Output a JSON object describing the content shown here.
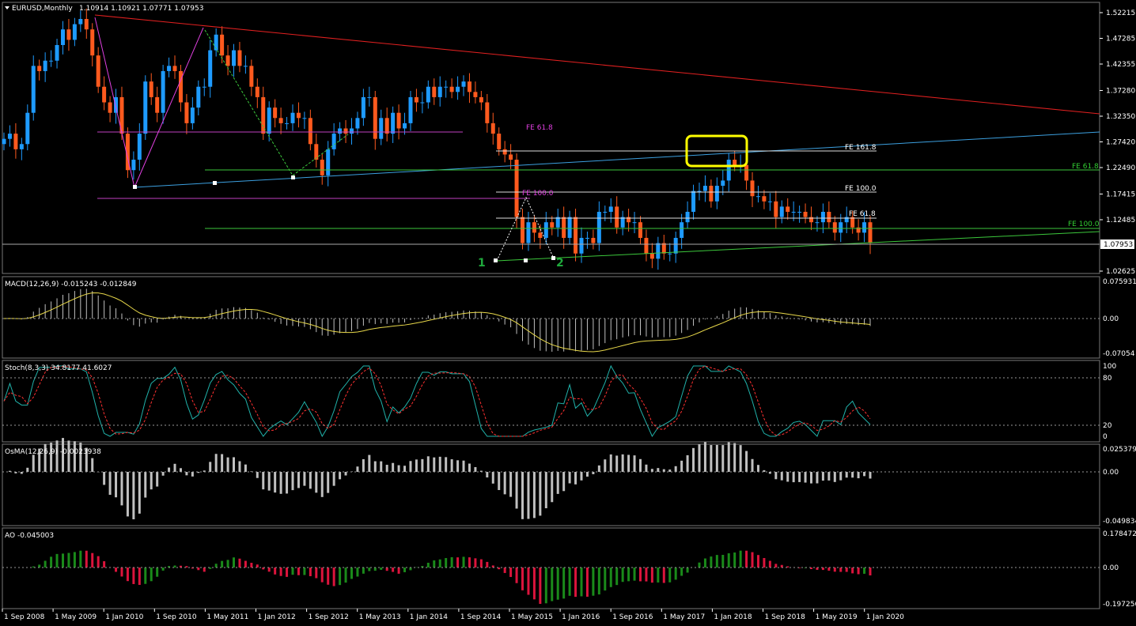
{
  "header": {
    "symbol": "EURUSD,Monthly",
    "ohlc": "1.10914 1.10921 1.07771 1.07953"
  },
  "panes": {
    "macd": {
      "title": "MACD(12,26,9) -0.015243 -0.012849",
      "ticks": [
        "0.075931",
        "0.00",
        "-0.07054"
      ]
    },
    "stoch": {
      "title": "Stoch(8,3,3) 34.8177 41.6027",
      "ticks": [
        "100",
        "80",
        "20",
        "0"
      ]
    },
    "osma": {
      "title": "OsMA(12,26,9) -0.0023938",
      "ticks": [
        "0.0253792",
        "0.00",
        "-0.049834"
      ]
    },
    "ao": {
      "title": "AO -0.045003",
      "ticks": [
        "0.178472",
        "0.00",
        "-0.197256"
      ]
    }
  },
  "annotations": {
    "fib_labels": [
      {
        "text": "FE 61.8",
        "color": "#e040e0"
      },
      {
        "text": "FE 100.0",
        "color": "#e040e0"
      },
      {
        "text": "FE 161.8",
        "color": "#ffffff"
      },
      {
        "text": "FE 100.0",
        "color": "#ffffff"
      },
      {
        "text": "FE 61.8",
        "color": "#ffffff"
      },
      {
        "text": "FE 61.8",
        "color": "#32cd32"
      },
      {
        "text": "FE 100.0",
        "color": "#32cd32"
      }
    ],
    "wave_labels": [
      "1",
      "2"
    ]
  },
  "colors": {
    "bull": "#1e9bff",
    "bear": "#ff5a1e",
    "macd_hist": "#c0c0c0",
    "signal": "#e8d84a",
    "stoch_main": "#20b2aa",
    "stoch_signal": "#ff3030",
    "ao_up": "#1a8a1a",
    "ao_down": "#dc143c",
    "trend_red": "#e02020",
    "trend_blue": "#3ca0e0",
    "trend_green": "#3cc83c",
    "highlight": "#ffff00"
  },
  "chart_data": {
    "type": "candlestick",
    "symbol": "EURUSD",
    "timeframe": "Monthly",
    "price_axis": {
      "ticks": [
        "1.52215",
        "1.47285",
        "1.42355",
        "1.37280",
        "1.32350",
        "1.27420",
        "1.22490",
        "1.17415",
        "1.12485",
        "1.02625"
      ],
      "current_price": "1.07953"
    },
    "time_axis": [
      "1 Sep 2008",
      "1 May 2009",
      "1 Jan 2010",
      "1 Sep 2010",
      "1 May 2011",
      "1 Jan 2012",
      "1 Sep 2012",
      "1 May 2013",
      "1 Jan 2014",
      "1 Sep 2014",
      "1 May 2015",
      "1 Jan 2016",
      "1 Sep 2016",
      "1 May 2017",
      "1 Jan 2018",
      "1 Sep 2018",
      "1 May 2019",
      "1 Jan 2020"
    ],
    "close_series": [
      1.28,
      1.29,
      1.26,
      1.27,
      1.33,
      1.42,
      1.41,
      1.43,
      1.43,
      1.46,
      1.49,
      1.47,
      1.5,
      1.51,
      1.49,
      1.44,
      1.38,
      1.35,
      1.33,
      1.36,
      1.29,
      1.22,
      1.24,
      1.29,
      1.39,
      1.36,
      1.33,
      1.41,
      1.42,
      1.41,
      1.35,
      1.31,
      1.34,
      1.38,
      1.38,
      1.45,
      1.48,
      1.44,
      1.42,
      1.45,
      1.42,
      1.42,
      1.38,
      1.36,
      1.29,
      1.34,
      1.32,
      1.31,
      1.31,
      1.33,
      1.32,
      1.32,
      1.27,
      1.24,
      1.21,
      1.26,
      1.29,
      1.3,
      1.29,
      1.3,
      1.32,
      1.36,
      1.36,
      1.28,
      1.32,
      1.29,
      1.33,
      1.3,
      1.31,
      1.36,
      1.35,
      1.35,
      1.38,
      1.36,
      1.38,
      1.38,
      1.37,
      1.38,
      1.39,
      1.37,
      1.36,
      1.35,
      1.31,
      1.29,
      1.26,
      1.25,
      1.24,
      1.13,
      1.08,
      1.12,
      1.1,
      1.09,
      1.12,
      1.11,
      1.13,
      1.09,
      1.13,
      1.06,
      1.09,
      1.09,
      1.08,
      1.14,
      1.14,
      1.15,
      1.11,
      1.13,
      1.12,
      1.12,
      1.09,
      1.06,
      1.05,
      1.08,
      1.06,
      1.06,
      1.09,
      1.12,
      1.14,
      1.18,
      1.18,
      1.19,
      1.16,
      1.19,
      1.2,
      1.24,
      1.23,
      1.23,
      1.2,
      1.17,
      1.17,
      1.16,
      1.16,
      1.13,
      1.15,
      1.14,
      1.14,
      1.14,
      1.13,
      1.12,
      1.12,
      1.14,
      1.12,
      1.1,
      1.12,
      1.13,
      1.11,
      1.1,
      1.12,
      1.08
    ],
    "indicators": [
      "MACD(12,26,9)",
      "Stoch(8,3,3)",
      "OsMA(12,26,9)",
      "AO"
    ]
  }
}
